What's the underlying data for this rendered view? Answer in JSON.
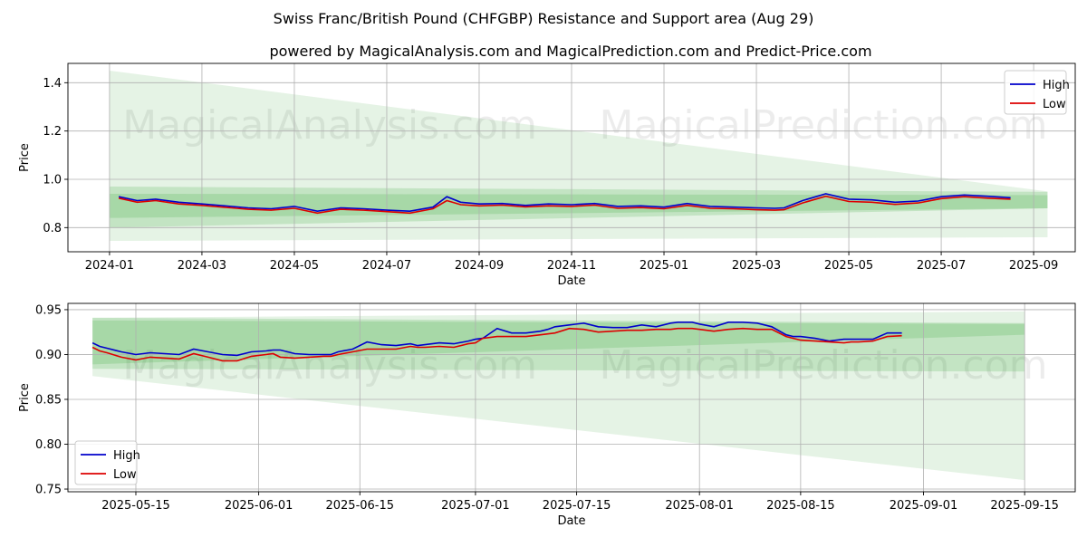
{
  "title": "Swiss Franc/British Pound (CHFGBP) Resistance and Support area (Aug 29)",
  "subtitle": "powered by MagicalAnalysis.com and MagicalPrediction.com and Predict-Price.com",
  "watermarks": [
    "MagicalAnalysis.com",
    "MagicalPrediction.com"
  ],
  "colors": {
    "high": "#0000cc",
    "low": "#dd0000",
    "band": "#2ca02c",
    "grid": "#b0b0b0"
  },
  "chart_data": [
    {
      "type": "line",
      "name": "top",
      "xlabel": "Date",
      "ylabel": "Price",
      "x_ticks": [
        "2024-01",
        "2024-03",
        "2024-05",
        "2024-07",
        "2024-09",
        "2024-11",
        "2025-01",
        "2025-03",
        "2025-05",
        "2025-07",
        "2025-09"
      ],
      "y_ticks": [
        "0.8",
        "1.0",
        "1.2",
        "1.4"
      ],
      "ylim": [
        0.7,
        1.48
      ],
      "xlim_months": [
        -0.9,
        20.9
      ],
      "legend": [
        "High",
        "Low"
      ],
      "legend_position": "top-right",
      "series": [
        {
          "name": "High",
          "x": [
            0.2,
            0.6,
            1.0,
            1.5,
            2.0,
            2.5,
            3.0,
            3.5,
            4.0,
            4.5,
            5.0,
            5.5,
            6.0,
            6.5,
            7.0,
            7.3,
            7.6,
            8.0,
            8.5,
            9.0,
            9.5,
            10.0,
            10.5,
            11.0,
            11.5,
            12.0,
            12.5,
            13.0,
            13.5,
            14.0,
            14.4,
            14.6,
            15.0,
            15.5,
            16.0,
            16.5,
            17.0,
            17.5,
            18.0,
            18.5,
            19.0,
            19.5
          ],
          "y": [
            0.928,
            0.912,
            0.918,
            0.905,
            0.898,
            0.89,
            0.882,
            0.878,
            0.888,
            0.868,
            0.882,
            0.878,
            0.872,
            0.868,
            0.885,
            0.928,
            0.905,
            0.898,
            0.9,
            0.892,
            0.898,
            0.895,
            0.9,
            0.888,
            0.89,
            0.885,
            0.9,
            0.888,
            0.885,
            0.882,
            0.88,
            0.882,
            0.912,
            0.94,
            0.918,
            0.915,
            0.905,
            0.91,
            0.928,
            0.935,
            0.93,
            0.924
          ]
        },
        {
          "name": "Low",
          "x": [
            0.2,
            0.6,
            1.0,
            1.5,
            2.0,
            2.5,
            3.0,
            3.5,
            4.0,
            4.5,
            5.0,
            5.5,
            6.0,
            6.5,
            7.0,
            7.3,
            7.6,
            8.0,
            8.5,
            9.0,
            9.5,
            10.0,
            10.5,
            11.0,
            11.5,
            12.0,
            12.5,
            13.0,
            13.5,
            14.0,
            14.4,
            14.6,
            15.0,
            15.5,
            16.0,
            16.5,
            17.0,
            17.5,
            18.0,
            18.5,
            19.0,
            19.5
          ],
          "y": [
            0.922,
            0.905,
            0.912,
            0.898,
            0.892,
            0.884,
            0.876,
            0.872,
            0.88,
            0.86,
            0.876,
            0.872,
            0.866,
            0.86,
            0.878,
            0.912,
            0.895,
            0.89,
            0.893,
            0.886,
            0.89,
            0.888,
            0.893,
            0.88,
            0.883,
            0.878,
            0.892,
            0.88,
            0.878,
            0.874,
            0.872,
            0.874,
            0.902,
            0.93,
            0.908,
            0.905,
            0.896,
            0.902,
            0.92,
            0.928,
            0.922,
            0.918
          ]
        }
      ],
      "bands": [
        {
          "x_start": 0.0,
          "x_end": 20.3,
          "upper": [
            1.45,
            0.95
          ],
          "lower": [
            0.745,
            0.76
          ],
          "opacity": 0.12
        },
        {
          "x_start": 0.0,
          "x_end": 20.3,
          "upper": [
            0.97,
            0.948
          ],
          "lower": [
            0.8,
            0.88
          ],
          "opacity": 0.18
        },
        {
          "x_start": 0.0,
          "x_end": 20.3,
          "upper": [
            0.94,
            0.935
          ],
          "lower": [
            0.84,
            0.88
          ],
          "opacity": 0.18
        }
      ]
    },
    {
      "type": "line",
      "name": "bottom",
      "xlabel": "Date",
      "ylabel": "Price",
      "x_ticks": [
        "2025-05-15",
        "2025-06-01",
        "2025-06-15",
        "2025-07-01",
        "2025-07-15",
        "2025-08-01",
        "2025-08-15",
        "2025-09-01",
        "2025-09-15"
      ],
      "x_tick_days": [
        14,
        31,
        45,
        61,
        75,
        92,
        106,
        123,
        137
      ],
      "y_ticks": [
        "0.75",
        "0.80",
        "0.85",
        "0.90",
        "0.95"
      ],
      "ylim": [
        0.747,
        0.957
      ],
      "xlim_days": [
        4.6,
        144.0
      ],
      "legend": [
        "High",
        "Low"
      ],
      "legend_position": "bottom-left",
      "series": [
        {
          "name": "High",
          "x": [
            8,
            9,
            10,
            12,
            14,
            16,
            18,
            20,
            22,
            24,
            26,
            28,
            30,
            32,
            33,
            34,
            36,
            38,
            40,
            41,
            42,
            44,
            46,
            48,
            50,
            52,
            53,
            54,
            56,
            58,
            60,
            61,
            62,
            64,
            66,
            68,
            70,
            71,
            72,
            74,
            76,
            78,
            80,
            82,
            84,
            86,
            88,
            89,
            90,
            91,
            92,
            94,
            96,
            98,
            100,
            102,
            104,
            105,
            106,
            108,
            110,
            112,
            113,
            114,
            116,
            118,
            120
          ],
          "y": [
            0.913,
            0.909,
            0.907,
            0.903,
            0.9,
            0.902,
            0.901,
            0.9,
            0.906,
            0.903,
            0.9,
            0.899,
            0.903,
            0.904,
            0.905,
            0.905,
            0.901,
            0.9,
            0.9,
            0.9,
            0.903,
            0.906,
            0.914,
            0.911,
            0.91,
            0.912,
            0.91,
            0.911,
            0.913,
            0.912,
            0.915,
            0.917,
            0.918,
            0.929,
            0.924,
            0.924,
            0.926,
            0.928,
            0.931,
            0.933,
            0.935,
            0.931,
            0.93,
            0.93,
            0.933,
            0.931,
            0.935,
            0.936,
            0.936,
            0.936,
            0.934,
            0.931,
            0.936,
            0.936,
            0.935,
            0.931,
            0.922,
            0.92,
            0.92,
            0.918,
            0.915,
            0.917,
            0.917,
            0.917,
            0.917,
            0.924,
            0.924
          ]
        },
        {
          "name": "Low",
          "x": [
            8,
            9,
            10,
            12,
            14,
            16,
            18,
            20,
            22,
            24,
            26,
            28,
            30,
            32,
            33,
            34,
            36,
            38,
            40,
            41,
            42,
            44,
            46,
            48,
            50,
            52,
            53,
            54,
            56,
            58,
            60,
            61,
            62,
            64,
            66,
            68,
            70,
            71,
            72,
            74,
            76,
            78,
            80,
            82,
            84,
            86,
            88,
            89,
            90,
            91,
            92,
            94,
            96,
            98,
            100,
            102,
            104,
            105,
            106,
            108,
            110,
            112,
            113,
            114,
            116,
            118,
            120
          ],
          "y": [
            0.908,
            0.904,
            0.902,
            0.897,
            0.894,
            0.897,
            0.896,
            0.895,
            0.901,
            0.897,
            0.893,
            0.893,
            0.898,
            0.9,
            0.901,
            0.897,
            0.896,
            0.897,
            0.898,
            0.898,
            0.9,
            0.903,
            0.906,
            0.906,
            0.906,
            0.909,
            0.908,
            0.908,
            0.909,
            0.908,
            0.912,
            0.913,
            0.918,
            0.92,
            0.92,
            0.92,
            0.922,
            0.923,
            0.924,
            0.929,
            0.928,
            0.925,
            0.926,
            0.927,
            0.927,
            0.928,
            0.928,
            0.929,
            0.929,
            0.929,
            0.928,
            0.926,
            0.928,
            0.929,
            0.928,
            0.928,
            0.92,
            0.918,
            0.916,
            0.915,
            0.914,
            0.913,
            0.914,
            0.914,
            0.915,
            0.92,
            0.921
          ]
        }
      ],
      "bands": [
        {
          "x_start": 8,
          "x_end": 137,
          "upper": [
            0.941,
            0.948
          ],
          "lower": [
            0.876,
            0.76
          ],
          "opacity": 0.12
        },
        {
          "x_start": 8,
          "x_end": 137,
          "upper": [
            0.941,
            0.935
          ],
          "lower": [
            0.884,
            0.881
          ],
          "opacity": 0.18
        },
        {
          "x_start": 8,
          "x_end": 137,
          "upper": [
            0.938,
            0.934
          ],
          "lower": [
            0.889,
            0.922
          ],
          "opacity": 0.18
        }
      ]
    }
  ]
}
